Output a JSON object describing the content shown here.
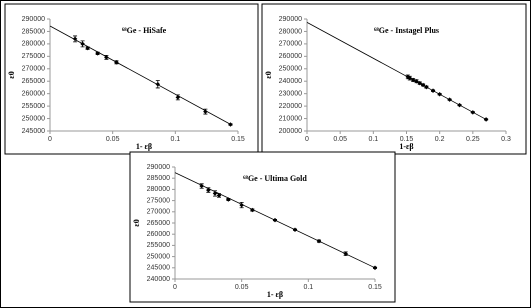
{
  "chart_data": [
    {
      "type": "scatter",
      "title": "⁶⁸Ge - HiSafe",
      "x_label": "1- εβ",
      "y_label": "ε0",
      "xlim": [
        0,
        0.15
      ],
      "xticks": [
        0,
        0.05,
        0.1,
        0.15
      ],
      "ylim": [
        245000,
        290000
      ],
      "yticks": [
        245000,
        250000,
        255000,
        260000,
        265000,
        270000,
        275000,
        280000,
        285000,
        290000
      ],
      "color": "#000000",
      "points": {
        "x": [
          0.02,
          0.026,
          0.03,
          0.038,
          0.045,
          0.053,
          0.086,
          0.102,
          0.124,
          0.144
        ],
        "values": [
          282000,
          280000,
          278300,
          276200,
          274600,
          272600,
          263800,
          258500,
          252800,
          247600
        ],
        "errors": [
          1200,
          1200,
          500,
          500,
          800,
          600,
          1500,
          1000,
          1000,
          300
        ]
      },
      "fit": {
        "x": [
          0,
          0.145
        ],
        "values": [
          287200,
          247400
        ]
      }
    },
    {
      "type": "scatter",
      "title": "⁶⁸Ge - Instagel Plus",
      "x_label": "1-εβ",
      "y_label": "ε0",
      "xlim": [
        0,
        0.3
      ],
      "xticks": [
        0,
        0.05,
        0.1,
        0.15,
        0.2,
        0.25,
        0.3
      ],
      "ylim": [
        200000,
        290000
      ],
      "yticks": [
        200000,
        210000,
        220000,
        230000,
        240000,
        250000,
        260000,
        270000,
        280000,
        290000
      ],
      "color": "#000000",
      "points": {
        "x": [
          0.152,
          0.155,
          0.16,
          0.165,
          0.17,
          0.175,
          0.18,
          0.19,
          0.2,
          0.215,
          0.23,
          0.25,
          0.27
        ],
        "values": [
          243500,
          242500,
          241000,
          240000,
          238500,
          237000,
          235300,
          232400,
          229500,
          225200,
          220800,
          215000,
          209300
        ],
        "errors": [
          1500,
          1500,
          1200,
          1200,
          1000,
          800,
          800,
          600,
          600,
          500,
          500,
          500,
          500
        ]
      },
      "fit": {
        "x": [
          0,
          0.27
        ],
        "values": [
          287300,
          209300
        ]
      }
    },
    {
      "type": "scatter",
      "title": "⁶⁸Ge - Ultima Gold",
      "x_label": "1- εβ",
      "y_label": "ε0",
      "xlim": [
        0,
        0.15
      ],
      "xticks": [
        0,
        0.05,
        0.1,
        0.15
      ],
      "ylim": [
        240000,
        290000
      ],
      "yticks": [
        240000,
        245000,
        250000,
        255000,
        260000,
        265000,
        270000,
        275000,
        280000,
        285000,
        290000
      ],
      "color": "#000000",
      "points": {
        "x": [
          0.02,
          0.025,
          0.03,
          0.033,
          0.04,
          0.05,
          0.058,
          0.075,
          0.09,
          0.108,
          0.128,
          0.15
        ],
        "values": [
          281500,
          279700,
          278200,
          277300,
          275500,
          273000,
          270800,
          266300,
          262000,
          256900,
          251300,
          245000
        ],
        "errors": [
          1000,
          1000,
          1200,
          800,
          500,
          1200,
          500,
          300,
          300,
          500,
          800,
          300
        ]
      },
      "fit": {
        "x": [
          0,
          0.15
        ],
        "values": [
          287500,
          245000
        ]
      }
    }
  ]
}
